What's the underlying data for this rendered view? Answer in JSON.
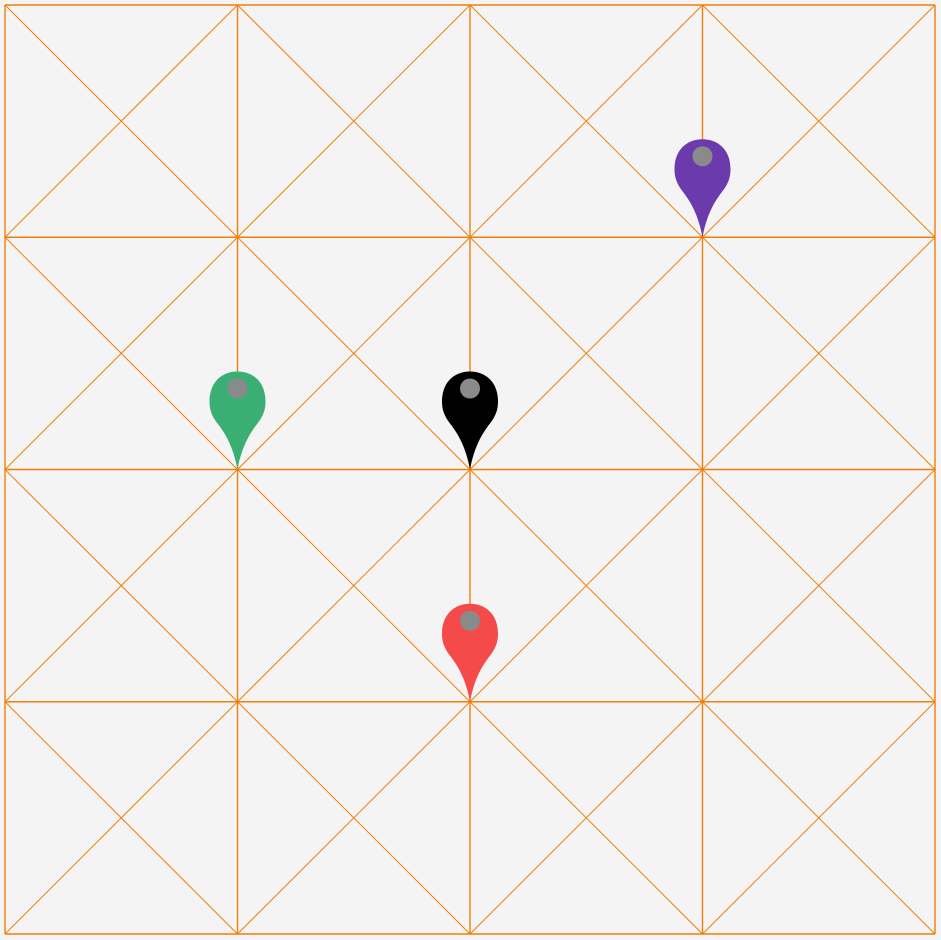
{
  "map": {
    "background_color": "#f4f4f4",
    "grid": {
      "line_color": "#f07f0a",
      "columns": 4,
      "rows": 4,
      "diagonals": true
    },
    "markers": [
      {
        "name": "marker-purple",
        "color": "#6b3aad",
        "dot_color": "#8a8a8a",
        "cell_col": 3,
        "cell_row": 1,
        "icon": "map-pin-icon"
      },
      {
        "name": "marker-green",
        "color": "#3aae73",
        "dot_color": "#8a8a8a",
        "cell_col": 1,
        "cell_row": 2,
        "icon": "map-pin-icon"
      },
      {
        "name": "marker-black",
        "color": "#000000",
        "dot_color": "#8a8a8a",
        "cell_col": 2,
        "cell_row": 2,
        "icon": "map-pin-icon"
      },
      {
        "name": "marker-red",
        "color": "#f54a4a",
        "dot_color": "#8a8a8a",
        "cell_col": 2,
        "cell_row": 3,
        "icon": "map-pin-icon"
      }
    ]
  }
}
